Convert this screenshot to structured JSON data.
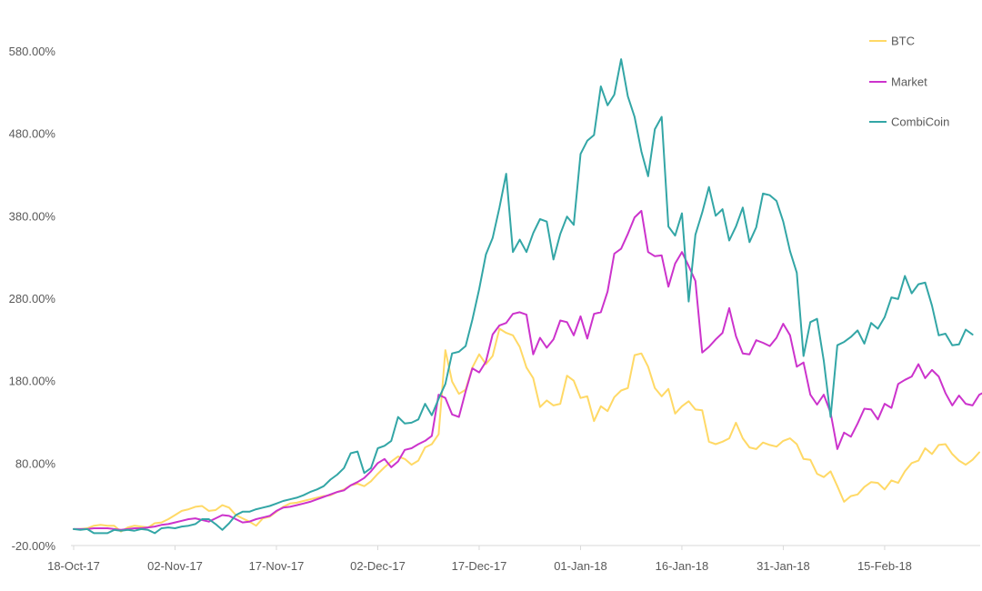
{
  "chart_data": {
    "type": "line",
    "title": "",
    "xlabel": "",
    "ylabel": "",
    "ylim": [
      -20,
      580
    ],
    "grid": false,
    "legend_placement": "top-right",
    "y_ticks": [
      "580.00%",
      "480.00%",
      "380.00%",
      "280.00%",
      "180.00%",
      "80.00%",
      "-20.00%"
    ],
    "y_tick_values": [
      580,
      480,
      380,
      280,
      180,
      80,
      -20
    ],
    "x_ticks": [
      "18-Oct-17",
      "02-Nov-17",
      "17-Nov-17",
      "02-Dec-17",
      "17-Dec-17",
      "01-Jan-18",
      "16-Jan-18",
      "31-Jan-18",
      "15-Feb-18"
    ],
    "x_tick_days": [
      0,
      15,
      30,
      45,
      60,
      75,
      90,
      105,
      120
    ],
    "x_range_days": [
      0,
      134
    ],
    "series": [
      {
        "name": "BTC",
        "color": "#FFD966",
        "values": [
          0,
          0,
          1,
          4,
          5,
          4,
          4,
          -3,
          2,
          4,
          3,
          2,
          7,
          8,
          12,
          17,
          22,
          24,
          27,
          28,
          22,
          23,
          29,
          26,
          17,
          13,
          9,
          4,
          13,
          15,
          21,
          27,
          31,
          32,
          34,
          36,
          38,
          40,
          41,
          45,
          48,
          53,
          55,
          52,
          58,
          67,
          75,
          82,
          88,
          85,
          78,
          83,
          99,
          103,
          115,
          217,
          179,
          164,
          169,
          196,
          212,
          200,
          210,
          243,
          238,
          235,
          221,
          196,
          183,
          148,
          156,
          150,
          152,
          186,
          180,
          159,
          161,
          131,
          149,
          143,
          160,
          168,
          171,
          211,
          213,
          197,
          171,
          161,
          170,
          140,
          149,
          155,
          145,
          144,
          106,
          103,
          106,
          110,
          129,
          110,
          99,
          97,
          105,
          102,
          100,
          107,
          110,
          103,
          85,
          84,
          67,
          63,
          70,
          52,
          33,
          40,
          42,
          51,
          57,
          56,
          48,
          59,
          56,
          70,
          80,
          83,
          98,
          91,
          102,
          103,
          91,
          83,
          78,
          84,
          93
        ]
      },
      {
        "name": "Market",
        "color": "#CC33CC",
        "values": [
          0,
          0,
          0,
          1,
          1,
          1,
          0,
          -1,
          0,
          1,
          1,
          2,
          3,
          5,
          6,
          8,
          10,
          12,
          13,
          11,
          9,
          13,
          17,
          16,
          12,
          8,
          9,
          12,
          14,
          16,
          22,
          26,
          27,
          29,
          31,
          33,
          36,
          39,
          42,
          45,
          47,
          53,
          57,
          62,
          70,
          80,
          85,
          75,
          82,
          96,
          98,
          103,
          107,
          113,
          163,
          159,
          139,
          136,
          167,
          195,
          190,
          203,
          236,
          247,
          250,
          261,
          263,
          260,
          212,
          232,
          220,
          230,
          253,
          251,
          235,
          258,
          231,
          261,
          263,
          288,
          334,
          340,
          358,
          378,
          386,
          336,
          331,
          332,
          294,
          322,
          336,
          319,
          301,
          214,
          221,
          230,
          238,
          268,
          234,
          213,
          212,
          229,
          226,
          222,
          232,
          249,
          235,
          197,
          202,
          163,
          151,
          163,
          141,
          97,
          117,
          112,
          128,
          146,
          145,
          133,
          152,
          147,
          176,
          181,
          185,
          200,
          183,
          193,
          185,
          165,
          150,
          162,
          152,
          150,
          163,
          167
        ]
      },
      {
        "name": "CombiCoin",
        "color": "#33A6A6",
        "values": [
          0,
          -1,
          0,
          -5,
          -5,
          -5,
          -1,
          -2,
          -1,
          -2,
          0,
          -1,
          -5,
          1,
          2,
          1,
          3,
          4,
          6,
          12,
          12,
          6,
          -1,
          7,
          17,
          21,
          21,
          24,
          26,
          28,
          31,
          34,
          36,
          38,
          41,
          45,
          48,
          52,
          60,
          66,
          74,
          92,
          94,
          68,
          74,
          98,
          101,
          107,
          136,
          128,
          129,
          133,
          152,
          138,
          158,
          176,
          213,
          215,
          222,
          254,
          291,
          333,
          353,
          390,
          431,
          336,
          351,
          336,
          359,
          376,
          373,
          327,
          358,
          379,
          369,
          455,
          471,
          478,
          537,
          514,
          527,
          570,
          525,
          500,
          458,
          428,
          485,
          500,
          367,
          356,
          383,
          276,
          357,
          384,
          415,
          380,
          388,
          350,
          367,
          390,
          348,
          366,
          407,
          405,
          398,
          373,
          337,
          311,
          210,
          251,
          255,
          204,
          136,
          223,
          227,
          233,
          241,
          225,
          250,
          243,
          257,
          281,
          279,
          307,
          286,
          297,
          299,
          271,
          235,
          237,
          223,
          224,
          242,
          236
        ]
      }
    ]
  }
}
